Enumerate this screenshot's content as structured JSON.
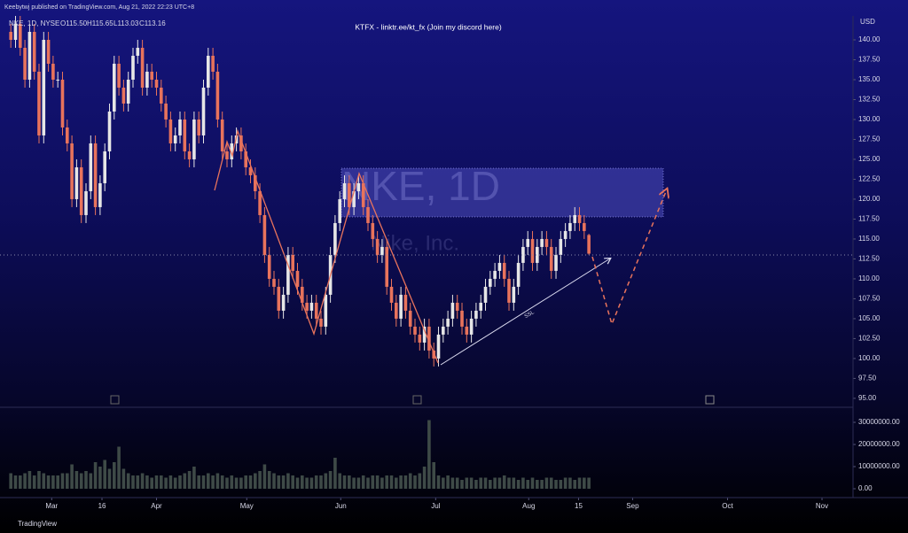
{
  "header": {
    "published": "Keebytwj published on TradingView.com, Aug 21, 2022 22:23 UTC+8",
    "symbol": "NKE, 1D, NYSE",
    "ohlc_legend": [
      "O115.50",
      "H115.65",
      "L113.03",
      "C113.16"
    ]
  },
  "footer": {
    "brand": "TradingView"
  },
  "chart_data": {
    "type": "candlestick",
    "title": "KTFX - linktr.ee/kt_fx (Join my discord here)",
    "watermark": "NKE, 1D",
    "watermark_subtitle": "Nike, Inc.",
    "annotation": "SSL",
    "currency": "USD",
    "up_color": "#e6e6e6",
    "down_color": "#e8735c",
    "xlim": [
      -2.3,
      179.2
    ],
    "xticks": [
      {
        "value": 8.7,
        "label": "Mar"
      },
      {
        "value": 19.4,
        "label": "16"
      },
      {
        "value": 31,
        "label": "Apr"
      },
      {
        "value": 50.2,
        "label": "May"
      },
      {
        "value": 70.2,
        "label": "Jun"
      },
      {
        "value": 90.4,
        "label": "Jul"
      },
      {
        "value": 110.2,
        "label": "Aug"
      },
      {
        "value": 120.8,
        "label": "15"
      },
      {
        "value": 132.3,
        "label": "Sep"
      },
      {
        "value": 152.5,
        "label": "Oct"
      },
      {
        "value": 172.6,
        "label": "Nov"
      }
    ],
    "ylim": [
      94.1,
      143
    ],
    "yticks": [
      {
        "value": 95,
        "label": "95.00"
      },
      {
        "value": 97.5,
        "label": "97.50"
      },
      {
        "value": 100,
        "label": "100.00"
      },
      {
        "value": 102.5,
        "label": "102.50"
      },
      {
        "value": 105,
        "label": "105.00"
      },
      {
        "value": 107.5,
        "label": "107.50"
      },
      {
        "value": 110,
        "label": "110.00"
      },
      {
        "value": 112.5,
        "label": "112.50"
      },
      {
        "value": 115,
        "label": "115.00"
      },
      {
        "value": 117.5,
        "label": "117.50"
      },
      {
        "value": 120,
        "label": "120.00"
      },
      {
        "value": 122.5,
        "label": "122.50"
      },
      {
        "value": 125,
        "label": "125.00"
      },
      {
        "value": 127.5,
        "label": "127.50"
      },
      {
        "value": 130,
        "label": "130.00"
      },
      {
        "value": 132.5,
        "label": "132.50"
      },
      {
        "value": 135,
        "label": "135.00"
      },
      {
        "value": 137.5,
        "label": "137.50"
      },
      {
        "value": 140,
        "label": "140.00"
      }
    ],
    "open": [
      141,
      140,
      142,
      139,
      135,
      141,
      136,
      128,
      140,
      137,
      135,
      135,
      129,
      127,
      120,
      124,
      118,
      121,
      127,
      119,
      122,
      126,
      131,
      137,
      134,
      132,
      135,
      138,
      139,
      134,
      136,
      135,
      134,
      132,
      130,
      127,
      128,
      130,
      126,
      125,
      130,
      128,
      134,
      138,
      136,
      130,
      126,
      125,
      127,
      128,
      126,
      124,
      123,
      121,
      118,
      113,
      110,
      109,
      106,
      108,
      113,
      111,
      109,
      107,
      106,
      107,
      105,
      104,
      108,
      113,
      117,
      120,
      122,
      119,
      121,
      122,
      119,
      117,
      115,
      113,
      114,
      109,
      107,
      105,
      108,
      106,
      104,
      103,
      102,
      104,
      101,
      100,
      103,
      104,
      105,
      107,
      106,
      104,
      103,
      105,
      106,
      107,
      109,
      110,
      111,
      112,
      110,
      107,
      109,
      112,
      114,
      115,
      112,
      114,
      115,
      114,
      111,
      113,
      115,
      116,
      117,
      118,
      117,
      115.5
    ],
    "high": [
      142,
      143,
      143,
      140,
      142,
      142,
      137,
      141,
      141,
      138,
      136,
      136,
      130,
      128,
      125,
      125,
      122,
      128,
      128,
      123,
      127,
      132,
      138,
      138,
      135,
      136,
      139,
      140,
      140,
      137,
      137,
      136,
      135,
      133,
      131,
      129,
      131,
      131,
      127,
      131,
      131,
      135,
      139,
      139,
      137,
      131,
      127,
      128,
      129,
      129,
      127,
      125,
      124,
      122,
      119,
      114,
      111,
      110,
      109,
      114,
      114,
      112,
      110,
      108,
      108,
      108,
      106,
      109,
      114,
      118,
      121,
      123,
      123,
      122,
      123,
      123,
      120,
      118,
      116,
      115,
      115,
      110,
      108,
      109,
      109,
      107,
      105,
      104,
      105,
      105,
      102,
      104,
      105,
      106,
      108,
      108,
      107,
      105,
      106,
      107,
      108,
      110,
      111,
      112,
      113,
      113,
      111,
      110,
      113,
      115,
      116,
      116,
      115,
      116,
      116,
      115,
      114,
      116,
      117,
      118,
      119,
      119,
      118,
      115.65
    ],
    "low": [
      139,
      139,
      138,
      134,
      134,
      135,
      127,
      127,
      136,
      134,
      134,
      128,
      126,
      119,
      119,
      117,
      117,
      120,
      118,
      118,
      121,
      125,
      130,
      133,
      131,
      131,
      134,
      137,
      133,
      133,
      134,
      133,
      131,
      129,
      126,
      126,
      127,
      125,
      124,
      124,
      127,
      127,
      133,
      135,
      129,
      125,
      124,
      124,
      126,
      125,
      123,
      122,
      120,
      117,
      112,
      109,
      108,
      105,
      105,
      107,
      110,
      108,
      106,
      105,
      105,
      104,
      103,
      103,
      107,
      112,
      116,
      119,
      118,
      118,
      120,
      118,
      116,
      114,
      112,
      112,
      108,
      106,
      104,
      104,
      105,
      103,
      102,
      101,
      101,
      100,
      99,
      99,
      102,
      103,
      104,
      105,
      103,
      102,
      102,
      104,
      105,
      106,
      108,
      109,
      110,
      109,
      106,
      106,
      108,
      111,
      113,
      111,
      111,
      113,
      113,
      110,
      110,
      112,
      114,
      115,
      116,
      116,
      115,
      113.03
    ],
    "close": [
      140,
      142,
      139,
      135,
      141,
      136,
      128,
      140,
      137,
      135,
      135,
      129,
      127,
      120,
      124,
      118,
      121,
      127,
      119,
      122,
      126,
      131,
      137,
      134,
      132,
      135,
      138,
      139,
      134,
      136,
      135,
      134,
      132,
      130,
      127,
      128,
      130,
      126,
      125,
      130,
      128,
      134,
      138,
      136,
      130,
      126,
      125,
      127,
      128,
      126,
      124,
      123,
      121,
      118,
      113,
      110,
      109,
      106,
      108,
      113,
      111,
      109,
      107,
      106,
      107,
      105,
      104,
      108,
      113,
      117,
      120,
      122,
      119,
      121,
      122,
      119,
      117,
      115,
      113,
      114,
      109,
      107,
      105,
      108,
      106,
      104,
      103,
      102,
      104,
      101,
      100,
      103,
      104,
      105,
      107,
      106,
      104,
      103,
      105,
      106,
      107,
      109,
      110,
      111,
      112,
      110,
      107,
      109,
      112,
      114,
      115,
      112,
      114,
      115,
      114,
      111,
      113,
      115,
      116,
      117,
      118,
      117,
      116,
      113.16
    ],
    "volume": {
      "color": "#3e4a47",
      "ylim": [
        -3200000,
        35600000
      ],
      "yticks": [
        {
          "value": 0,
          "label": "0.00"
        },
        {
          "value": 10000000,
          "label": "10000000.00"
        },
        {
          "value": 20000000,
          "label": "20000000.00"
        },
        {
          "value": 30000000,
          "label": "30000000.00"
        }
      ],
      "values": [
        7000000,
        6000000,
        6000000,
        7000000,
        8000000,
        6000000,
        8000000,
        7000000,
        6000000,
        6000000,
        6000000,
        7000000,
        7000000,
        11000000,
        8000000,
        7000000,
        8000000,
        7000000,
        12000000,
        10000000,
        13000000,
        9000000,
        12000000,
        19000000,
        9000000,
        7000000,
        6000000,
        6000000,
        7000000,
        6000000,
        5000000,
        6000000,
        6000000,
        5000000,
        6000000,
        5000000,
        6000000,
        7000000,
        8000000,
        10000000,
        6000000,
        6000000,
        7000000,
        6000000,
        7000000,
        6000000,
        5000000,
        6000000,
        5000000,
        5000000,
        6000000,
        6000000,
        7000000,
        8000000,
        11000000,
        8000000,
        7000000,
        6000000,
        6000000,
        7000000,
        6000000,
        5000000,
        6000000,
        5000000,
        5000000,
        6000000,
        6000000,
        7000000,
        8000000,
        14000000,
        7000000,
        6000000,
        6000000,
        5000000,
        5000000,
        6000000,
        5000000,
        6000000,
        6000000,
        5000000,
        6000000,
        6000000,
        5000000,
        6000000,
        6000000,
        7000000,
        6000000,
        7000000,
        10000000,
        31000000,
        12000000,
        6000000,
        5000000,
        6000000,
        5000000,
        5000000,
        4000000,
        5000000,
        5000000,
        4000000,
        5000000,
        5000000,
        4000000,
        5000000,
        5000000,
        6000000,
        5000000,
        5000000,
        4000000,
        5000000,
        4000000,
        5000000,
        4000000,
        4000000,
        5000000,
        5000000,
        4000000,
        4000000,
        5000000,
        5000000,
        4000000,
        5000000,
        5000000,
        5000000
      ]
    }
  }
}
